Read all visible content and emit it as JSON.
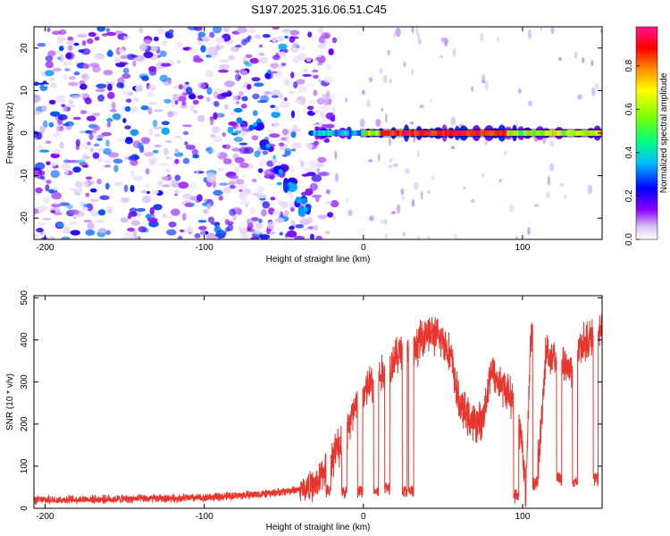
{
  "title": "S197.2025.316.06.51.C45",
  "chart_data": [
    {
      "type": "heatmap",
      "xlabel": "Height of straight line (km)",
      "ylabel": "Frequency (Hz)",
      "xlim": [
        -207,
        150
      ],
      "ylim": [
        -25,
        25
      ],
      "x_ticks": [
        -200,
        -100,
        0,
        100
      ],
      "y_ticks": [
        -20,
        -10,
        0,
        10,
        20
      ],
      "colorbar": {
        "label": "Normalized spectral amplitude",
        "range": [
          0,
          0.98
        ],
        "ticks": [
          0.0,
          0.2,
          0.4,
          0.6,
          0.8
        ],
        "colors": [
          "#ffffff",
          "#8b00ff",
          "#0000ff",
          "#00bfff",
          "#00ff7f",
          "#7fff00",
          "#ffff00",
          "#ff8c00",
          "#ff0000",
          "#ff1493"
        ]
      },
      "features": [
        {
          "name": "broadband noise",
          "x_range": [
            -207,
            -30
          ],
          "freq_range": [
            -25,
            25
          ],
          "amplitude": 0.15
        },
        {
          "name": "descending streak",
          "points": [
            [
              -68,
              2
            ],
            [
              -60,
              -3
            ],
            [
              -52,
              -9
            ],
            [
              -46,
              -12
            ],
            [
              -40,
              -16
            ],
            [
              -36,
              -18
            ]
          ],
          "amplitude": 0.3
        },
        {
          "name": "0 Hz tone",
          "x_range": [
            -33,
            150
          ],
          "freq": 0,
          "amplitude": 0.95
        }
      ]
    },
    {
      "type": "line",
      "xlabel": "Height of straight line (km)",
      "ylabel": "SNR (10 * v/v)",
      "xlim": [
        -207,
        150
      ],
      "ylim": [
        0,
        505
      ],
      "x_ticks": [
        -200,
        -100,
        0,
        100
      ],
      "y_ticks": [
        0,
        100,
        200,
        300,
        400,
        500
      ],
      "series": [
        {
          "name": "SNR",
          "color": "#e8352e",
          "x": [
            -207,
            -150,
            -100,
            -60,
            -40,
            -30,
            -20,
            -15,
            -10,
            -5,
            0,
            5,
            8,
            10,
            15,
            20,
            25,
            28,
            30,
            35,
            40,
            45,
            50,
            55,
            60,
            65,
            70,
            75,
            80,
            85,
            90,
            95,
            100,
            102,
            105,
            108,
            110,
            115,
            118,
            120,
            125,
            130,
            135,
            140,
            145,
            150
          ],
          "values": [
            20,
            22,
            25,
            35,
            45,
            55,
            120,
            150,
            190,
            230,
            270,
            300,
            250,
            310,
            330,
            360,
            380,
            360,
            340,
            400,
            420,
            410,
            400,
            360,
            250,
            220,
            200,
            210,
            330,
            300,
            280,
            250,
            150,
            30,
            400,
            420,
            100,
            390,
            340,
            360,
            350,
            330,
            380,
            400,
            410,
            420
          ],
          "dips": [
            [
              -22,
              40
            ],
            [
              -12,
              40
            ],
            [
              -2,
              40
            ],
            [
              8,
              40
            ],
            [
              15,
              50
            ],
            [
              26,
              40
            ],
            [
              30,
              40
            ],
            [
              96,
              30
            ],
            [
              108,
              60
            ],
            [
              123,
              70
            ],
            [
              133,
              60
            ],
            [
              146,
              70
            ]
          ]
        }
      ]
    }
  ]
}
